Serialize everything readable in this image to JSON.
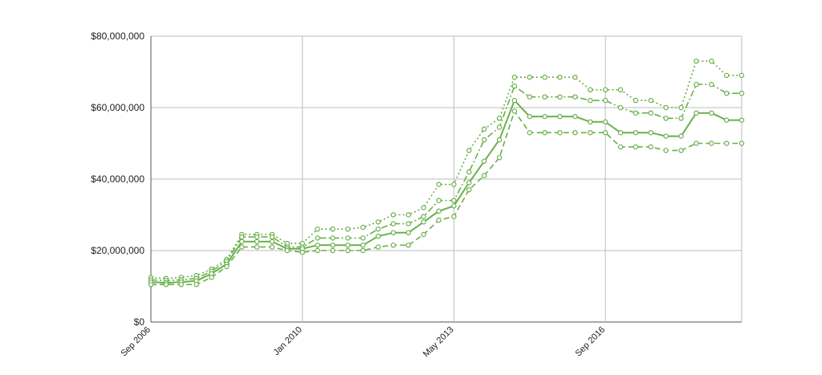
{
  "colors": {
    "series": "#6ab04c",
    "grid": "#bdbdbd",
    "axis": "#555555",
    "text": "#222222",
    "background": "#ffffff"
  },
  "chart_data": {
    "type": "line",
    "title": "",
    "xlabel": "",
    "ylabel": "",
    "x_tick_labels": [
      "Sep 2006",
      "Jan 2010",
      "May 2013",
      "Sep 2016"
    ],
    "x_tick_dates": [
      "2006-09",
      "2010-01",
      "2013-05",
      "2016-09"
    ],
    "xlim": [
      "2006-09",
      "2019-09"
    ],
    "ylim": [
      0,
      80000000
    ],
    "y_tick_values": [
      0,
      20000000,
      40000000,
      60000000,
      80000000
    ],
    "y_tick_labels": [
      "$0",
      "$20,000,000",
      "$40,000,000",
      "$60,000,000",
      "$80,000,000"
    ],
    "grid": true,
    "legend": "none",
    "series": [
      {
        "style": "dotted",
        "points": [
          [
            "2006-09",
            12400000
          ],
          [
            "2007-01",
            12200000
          ],
          [
            "2007-05",
            12500000
          ],
          [
            "2007-09",
            13000000
          ],
          [
            "2008-01",
            14800000
          ],
          [
            "2008-05",
            17500000
          ],
          [
            "2008-09",
            24500000
          ],
          [
            "2009-01",
            24500000
          ],
          [
            "2009-05",
            24500000
          ],
          [
            "2009-09",
            22000000
          ],
          [
            "2010-01",
            22000000
          ],
          [
            "2010-05",
            26000000
          ],
          [
            "2010-09",
            26000000
          ],
          [
            "2011-01",
            26000000
          ],
          [
            "2011-05",
            26500000
          ],
          [
            "2011-09",
            28000000
          ],
          [
            "2012-01",
            30000000
          ],
          [
            "2012-05",
            30000000
          ],
          [
            "2012-09",
            32000000
          ],
          [
            "2013-01",
            38500000
          ],
          [
            "2013-05",
            38500000
          ],
          [
            "2013-09",
            48000000
          ],
          [
            "2014-01",
            54000000
          ],
          [
            "2014-05",
            57000000
          ],
          [
            "2014-09",
            68500000
          ],
          [
            "2015-01",
            68500000
          ],
          [
            "2015-05",
            68500000
          ],
          [
            "2015-09",
            68500000
          ],
          [
            "2016-01",
            68500000
          ],
          [
            "2016-05",
            65000000
          ],
          [
            "2016-09",
            65000000
          ],
          [
            "2017-01",
            65000000
          ],
          [
            "2017-05",
            62000000
          ],
          [
            "2017-09",
            62000000
          ],
          [
            "2018-01",
            60000000
          ],
          [
            "2018-05",
            60000000
          ],
          [
            "2018-09",
            73000000
          ],
          [
            "2019-01",
            73000000
          ],
          [
            "2019-05",
            69000000
          ],
          [
            "2019-09",
            69000000
          ]
        ]
      },
      {
        "style": "dashdot",
        "points": [
          [
            "2006-09",
            11800000
          ],
          [
            "2007-01",
            11600000
          ],
          [
            "2007-05",
            11800000
          ],
          [
            "2007-09",
            12200000
          ],
          [
            "2008-01",
            14200000
          ],
          [
            "2008-05",
            17000000
          ],
          [
            "2008-09",
            23800000
          ],
          [
            "2009-01",
            23800000
          ],
          [
            "2009-05",
            23800000
          ],
          [
            "2009-09",
            21000000
          ],
          [
            "2010-01",
            21000000
          ],
          [
            "2010-05",
            23500000
          ],
          [
            "2010-09",
            23500000
          ],
          [
            "2011-01",
            23500000
          ],
          [
            "2011-05",
            23500000
          ],
          [
            "2011-09",
            26000000
          ],
          [
            "2012-01",
            27500000
          ],
          [
            "2012-05",
            27500000
          ],
          [
            "2012-09",
            29500000
          ],
          [
            "2013-01",
            34000000
          ],
          [
            "2013-05",
            34000000
          ],
          [
            "2013-09",
            42000000
          ],
          [
            "2014-01",
            51000000
          ],
          [
            "2014-05",
            54500000
          ],
          [
            "2014-09",
            66000000
          ],
          [
            "2015-01",
            63000000
          ],
          [
            "2015-05",
            63000000
          ],
          [
            "2015-09",
            63000000
          ],
          [
            "2016-01",
            63000000
          ],
          [
            "2016-05",
            62000000
          ],
          [
            "2016-09",
            62000000
          ],
          [
            "2017-01",
            60000000
          ],
          [
            "2017-05",
            58500000
          ],
          [
            "2017-09",
            58500000
          ],
          [
            "2018-01",
            57000000
          ],
          [
            "2018-05",
            57000000
          ],
          [
            "2018-09",
            66500000
          ],
          [
            "2019-01",
            66500000
          ],
          [
            "2019-05",
            64000000
          ],
          [
            "2019-09",
            64000000
          ]
        ]
      },
      {
        "style": "solid",
        "points": [
          [
            "2006-09",
            11200000
          ],
          [
            "2007-01",
            11000000
          ],
          [
            "2007-05",
            11200000
          ],
          [
            "2007-09",
            11500000
          ],
          [
            "2008-01",
            13500000
          ],
          [
            "2008-05",
            16200000
          ],
          [
            "2008-09",
            22500000
          ],
          [
            "2009-01",
            22500000
          ],
          [
            "2009-05",
            22500000
          ],
          [
            "2009-09",
            20500000
          ],
          [
            "2010-01",
            20500000
          ],
          [
            "2010-05",
            21500000
          ],
          [
            "2010-09",
            21500000
          ],
          [
            "2011-01",
            21500000
          ],
          [
            "2011-05",
            21500000
          ],
          [
            "2011-09",
            24000000
          ],
          [
            "2012-01",
            25000000
          ],
          [
            "2012-05",
            25000000
          ],
          [
            "2012-09",
            28000000
          ],
          [
            "2013-01",
            31000000
          ],
          [
            "2013-05",
            32500000
          ],
          [
            "2013-09",
            39000000
          ],
          [
            "2014-01",
            45000000
          ],
          [
            "2014-05",
            51000000
          ],
          [
            "2014-09",
            62000000
          ],
          [
            "2015-01",
            57500000
          ],
          [
            "2015-05",
            57500000
          ],
          [
            "2015-09",
            57500000
          ],
          [
            "2016-01",
            57500000
          ],
          [
            "2016-05",
            56000000
          ],
          [
            "2016-09",
            56000000
          ],
          [
            "2017-01",
            53000000
          ],
          [
            "2017-05",
            53000000
          ],
          [
            "2017-09",
            53000000
          ],
          [
            "2018-01",
            52000000
          ],
          [
            "2018-05",
            52000000
          ],
          [
            "2018-09",
            58500000
          ],
          [
            "2019-01",
            58500000
          ],
          [
            "2019-05",
            56500000
          ],
          [
            "2019-09",
            56500000
          ]
        ]
      },
      {
        "style": "dashed",
        "points": [
          [
            "2006-09",
            10500000
          ],
          [
            "2007-01",
            10500000
          ],
          [
            "2007-05",
            10500000
          ],
          [
            "2007-09",
            10500000
          ],
          [
            "2008-01",
            12500000
          ],
          [
            "2008-05",
            15500000
          ],
          [
            "2008-09",
            21000000
          ],
          [
            "2009-01",
            21000000
          ],
          [
            "2009-05",
            21000000
          ],
          [
            "2009-09",
            20000000
          ],
          [
            "2010-01",
            19500000
          ],
          [
            "2010-05",
            20000000
          ],
          [
            "2010-09",
            20000000
          ],
          [
            "2011-01",
            20000000
          ],
          [
            "2011-05",
            20000000
          ],
          [
            "2011-09",
            21000000
          ],
          [
            "2012-01",
            21500000
          ],
          [
            "2012-05",
            21500000
          ],
          [
            "2012-09",
            24500000
          ],
          [
            "2013-01",
            28500000
          ],
          [
            "2013-05",
            29500000
          ],
          [
            "2013-09",
            37000000
          ],
          [
            "2014-01",
            41000000
          ],
          [
            "2014-05",
            46000000
          ],
          [
            "2014-09",
            59000000
          ],
          [
            "2015-01",
            53000000
          ],
          [
            "2015-05",
            53000000
          ],
          [
            "2015-09",
            53000000
          ],
          [
            "2016-01",
            53000000
          ],
          [
            "2016-05",
            53000000
          ],
          [
            "2016-09",
            53000000
          ],
          [
            "2017-01",
            49000000
          ],
          [
            "2017-05",
            49000000
          ],
          [
            "2017-09",
            49000000
          ],
          [
            "2018-01",
            48000000
          ],
          [
            "2018-05",
            48000000
          ],
          [
            "2018-09",
            50000000
          ],
          [
            "2019-01",
            50000000
          ],
          [
            "2019-05",
            50000000
          ],
          [
            "2019-09",
            50000000
          ]
        ]
      }
    ]
  }
}
